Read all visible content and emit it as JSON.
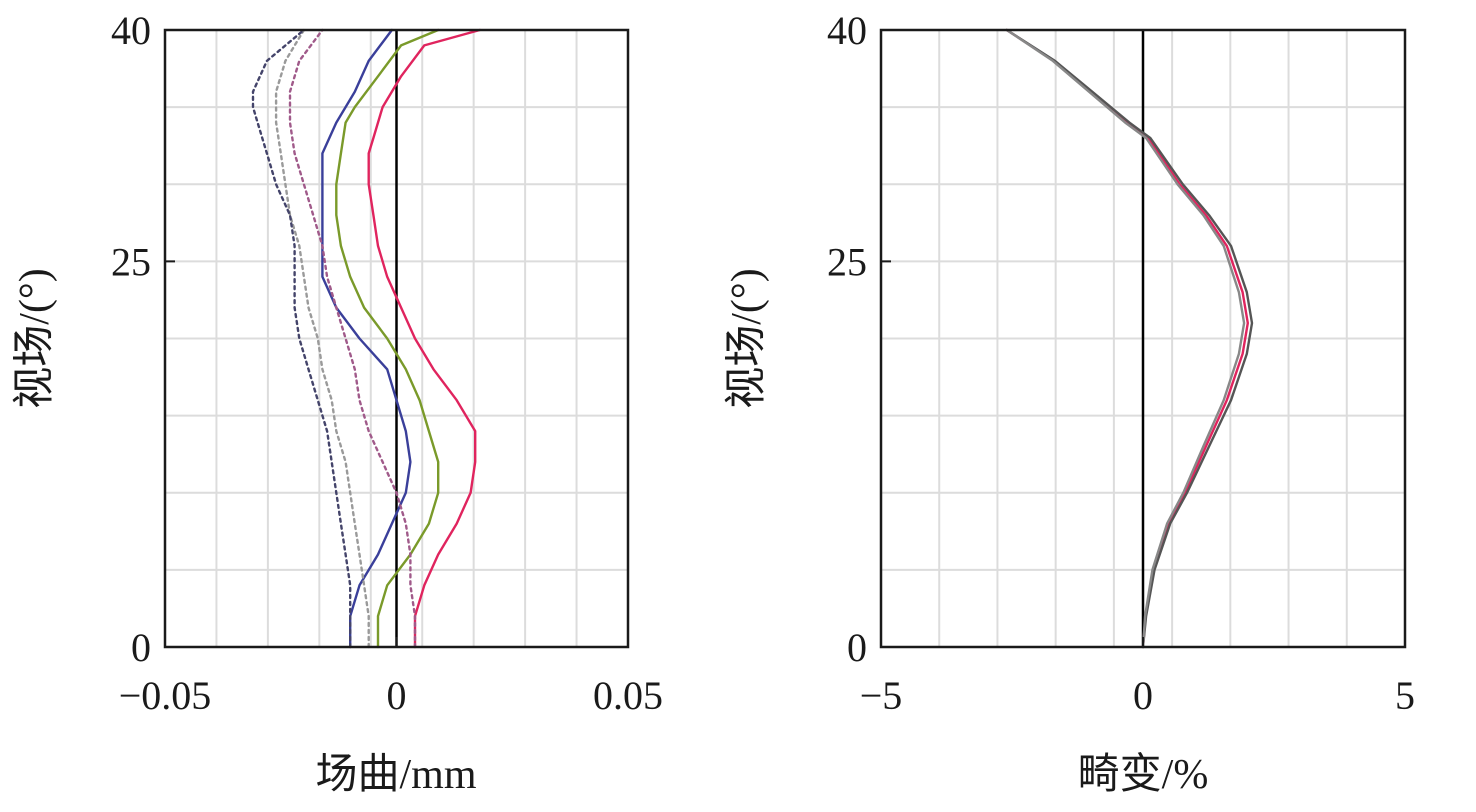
{
  "chart_data": [
    {
      "type": "line",
      "title": "",
      "xlabel": "场曲/mm",
      "ylabel": "视场/(°)",
      "xlim": [
        -0.05,
        0.05
      ],
      "ylim": [
        0,
        40
      ],
      "xticks": [
        {
          "value": -0.05,
          "label": "−0.05"
        },
        {
          "value": 0,
          "label": "0"
        },
        {
          "value": 0.05,
          "label": "0.05"
        }
      ],
      "yticks": [
        {
          "value": 0,
          "label": "0"
        },
        {
          "value": 25,
          "label": "25"
        },
        {
          "value": 40,
          "label": "40"
        }
      ],
      "grid": true,
      "series": [
        {
          "color": "#e0245e",
          "dash": "solid",
          "points": [
            [
              0.004,
              0
            ],
            [
              0.004,
              2
            ],
            [
              0.006,
              4
            ],
            [
              0.009,
              6
            ],
            [
              0.013,
              8
            ],
            [
              0.016,
              10
            ],
            [
              0.017,
              12
            ],
            [
              0.017,
              14
            ],
            [
              0.013,
              16
            ],
            [
              0.008,
              18
            ],
            [
              0.004,
              20
            ],
            [
              0.001,
              22
            ],
            [
              -0.002,
              24
            ],
            [
              -0.004,
              26
            ],
            [
              -0.005,
              28
            ],
            [
              -0.006,
              30
            ],
            [
              -0.006,
              32
            ],
            [
              -0.005,
              33
            ],
            [
              -0.003,
              35
            ],
            [
              0.001,
              37
            ],
            [
              0.006,
              39
            ],
            [
              0.018,
              40
            ]
          ]
        },
        {
          "color": "#7a9a2a",
          "dash": "solid",
          "points": [
            [
              -0.004,
              0
            ],
            [
              -0.004,
              2
            ],
            [
              -0.002,
              4
            ],
            [
              0.003,
              6
            ],
            [
              0.007,
              8
            ],
            [
              0.009,
              10
            ],
            [
              0.009,
              12
            ],
            [
              0.007,
              14
            ],
            [
              0.005,
              16
            ],
            [
              0.002,
              18
            ],
            [
              -0.002,
              20
            ],
            [
              -0.007,
              22
            ],
            [
              -0.01,
              24
            ],
            [
              -0.012,
              26
            ],
            [
              -0.013,
              28
            ],
            [
              -0.013,
              30
            ],
            [
              -0.012,
              32
            ],
            [
              -0.011,
              34
            ],
            [
              -0.009,
              35
            ],
            [
              -0.004,
              37
            ],
            [
              0.001,
              39
            ],
            [
              0.009,
              40
            ]
          ]
        },
        {
          "color": "#3a3f9a",
          "dash": "solid",
          "points": [
            [
              -0.01,
              0
            ],
            [
              -0.01,
              2
            ],
            [
              -0.008,
              4
            ],
            [
              -0.004,
              6
            ],
            [
              -0.001,
              8
            ],
            [
              0.002,
              10
            ],
            [
              0.003,
              12
            ],
            [
              0.002,
              14
            ],
            [
              0.0,
              16
            ],
            [
              -0.002,
              18
            ],
            [
              -0.008,
              20
            ],
            [
              -0.013,
              22
            ],
            [
              -0.016,
              24
            ],
            [
              -0.016,
              26
            ],
            [
              -0.016,
              28
            ],
            [
              -0.016,
              30
            ],
            [
              -0.016,
              32
            ],
            [
              -0.013,
              34
            ],
            [
              -0.009,
              36
            ],
            [
              -0.006,
              38
            ],
            [
              -0.001,
              40
            ]
          ]
        },
        {
          "color": "#a05a8a",
          "dash": "dotted",
          "points": [
            [
              0.004,
              0
            ],
            [
              0.004,
              2
            ],
            [
              0.003,
              4
            ],
            [
              0.003,
              6
            ],
            [
              0.002,
              8
            ],
            [
              0.0,
              10
            ],
            [
              -0.003,
              12
            ],
            [
              -0.006,
              14
            ],
            [
              -0.008,
              16
            ],
            [
              -0.009,
              18
            ],
            [
              -0.011,
              20
            ],
            [
              -0.013,
              22
            ],
            [
              -0.015,
              24
            ],
            [
              -0.016,
              26
            ],
            [
              -0.018,
              28
            ],
            [
              -0.02,
              30
            ],
            [
              -0.022,
              32
            ],
            [
              -0.023,
              34
            ],
            [
              -0.023,
              35
            ],
            [
              -0.023,
              36
            ],
            [
              -0.021,
              38
            ],
            [
              -0.016,
              40
            ]
          ]
        },
        {
          "color": "#9a9a9a",
          "dash": "dotted",
          "points": [
            [
              -0.006,
              0
            ],
            [
              -0.006,
              2
            ],
            [
              -0.007,
              4
            ],
            [
              -0.008,
              6
            ],
            [
              -0.009,
              8
            ],
            [
              -0.01,
              10
            ],
            [
              -0.011,
              12
            ],
            [
              -0.013,
              14
            ],
            [
              -0.014,
              16
            ],
            [
              -0.016,
              18
            ],
            [
              -0.017,
              20
            ],
            [
              -0.019,
              22
            ],
            [
              -0.02,
              24
            ],
            [
              -0.021,
              26
            ],
            [
              -0.023,
              28
            ],
            [
              -0.024,
              30
            ],
            [
              -0.025,
              32
            ],
            [
              -0.026,
              34
            ],
            [
              -0.026,
              36
            ],
            [
              -0.024,
              38
            ],
            [
              -0.02,
              40
            ]
          ]
        },
        {
          "color": "#44446a",
          "dash": "dotted",
          "points": [
            [
              -0.01,
              0
            ],
            [
              -0.01,
              2
            ],
            [
              -0.01,
              4
            ],
            [
              -0.011,
              6
            ],
            [
              -0.012,
              8
            ],
            [
              -0.013,
              10
            ],
            [
              -0.014,
              12
            ],
            [
              -0.015,
              14
            ],
            [
              -0.017,
              16
            ],
            [
              -0.019,
              18
            ],
            [
              -0.021,
              20
            ],
            [
              -0.022,
              22
            ],
            [
              -0.022,
              24
            ],
            [
              -0.022,
              26
            ],
            [
              -0.023,
              28
            ],
            [
              -0.026,
              30
            ],
            [
              -0.028,
              32
            ],
            [
              -0.03,
              34
            ],
            [
              -0.031,
              35
            ],
            [
              -0.031,
              36
            ],
            [
              -0.028,
              38
            ],
            [
              -0.02,
              40
            ]
          ]
        }
      ]
    },
    {
      "type": "line",
      "title": "",
      "xlabel": "畸变/%",
      "ylabel": "视场/(°)",
      "xlim": [
        -5,
        5
      ],
      "ylim": [
        0,
        40
      ],
      "xticks": [
        {
          "value": -5,
          "label": "−5"
        },
        {
          "value": 0,
          "label": "0"
        },
        {
          "value": 5,
          "label": "5"
        }
      ],
      "yticks": [
        {
          "value": 0,
          "label": "0"
        },
        {
          "value": 25,
          "label": "25"
        },
        {
          "value": 40,
          "label": "40"
        }
      ],
      "grid": true,
      "series": [
        {
          "color": "#e0245e",
          "dash": "solid",
          "points": [
            [
              0,
              0
            ],
            [
              0.05,
              2
            ],
            [
              0.2,
              5
            ],
            [
              0.5,
              8
            ],
            [
              0.8,
              10
            ],
            [
              1.2,
              13
            ],
            [
              1.6,
              16
            ],
            [
              1.9,
              19
            ],
            [
              2.0,
              21
            ],
            [
              1.9,
              23
            ],
            [
              1.6,
              26
            ],
            [
              1.2,
              28
            ],
            [
              0.7,
              30
            ],
            [
              0.1,
              33
            ],
            [
              -0.3,
              34
            ],
            [
              -1.0,
              36
            ],
            [
              -1.7,
              38
            ],
            [
              -2.6,
              40
            ]
          ]
        },
        {
          "color": "#555555",
          "dash": "solid",
          "points": [
            [
              0,
              0
            ],
            [
              0.06,
              2
            ],
            [
              0.22,
              5
            ],
            [
              0.52,
              8
            ],
            [
              0.84,
              10
            ],
            [
              1.26,
              13
            ],
            [
              1.68,
              16
            ],
            [
              1.98,
              19
            ],
            [
              2.08,
              21
            ],
            [
              1.98,
              23
            ],
            [
              1.68,
              26
            ],
            [
              1.26,
              28
            ],
            [
              0.76,
              30
            ],
            [
              0.14,
              33
            ],
            [
              -0.26,
              34
            ],
            [
              -0.97,
              36
            ],
            [
              -1.68,
              38
            ],
            [
              -2.6,
              40
            ]
          ]
        },
        {
          "color": "#888888",
          "dash": "solid",
          "points": [
            [
              0,
              0
            ],
            [
              0.04,
              2
            ],
            [
              0.18,
              5
            ],
            [
              0.46,
              8
            ],
            [
              0.77,
              10
            ],
            [
              1.15,
              13
            ],
            [
              1.54,
              16
            ],
            [
              1.83,
              19
            ],
            [
              1.93,
              21
            ],
            [
              1.83,
              23
            ],
            [
              1.54,
              26
            ],
            [
              1.15,
              28
            ],
            [
              0.66,
              30
            ],
            [
              0.06,
              33
            ],
            [
              -0.34,
              34
            ],
            [
              -1.03,
              36
            ],
            [
              -1.72,
              38
            ],
            [
              -2.6,
              40
            ]
          ]
        }
      ]
    }
  ]
}
